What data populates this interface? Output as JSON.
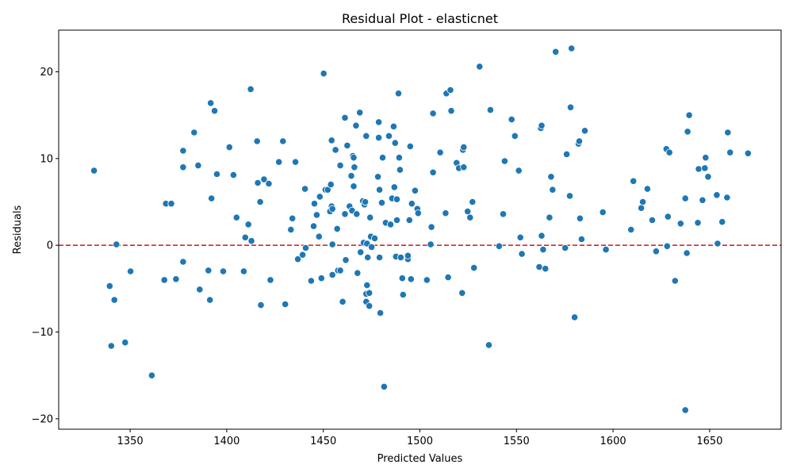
{
  "chart_data": {
    "type": "scatter",
    "title": "Residual Plot - elasticnet",
    "xlabel": "Predicted Values",
    "ylabel": "Residuals",
    "xlim": [
      1313,
      1687
    ],
    "ylim": [
      -21.2,
      24.8
    ],
    "xticks": [
      1350,
      1400,
      1450,
      1500,
      1550,
      1600,
      1650
    ],
    "xtick_labels": [
      "1350",
      "1400",
      "1450",
      "1500",
      "1550",
      "1600",
      "1650"
    ],
    "yticks": [
      -20,
      -10,
      0,
      10,
      20
    ],
    "ytick_labels": [
      "−20",
      "−10",
      "0",
      "10",
      "20"
    ],
    "grid": false,
    "reference_line": {
      "y": 0,
      "style": "dashed",
      "color": "#d62728"
    },
    "marker_color": "#1f77b4",
    "points": [
      [
        1331.3,
        8.6
      ],
      [
        1339.4,
        -4.7
      ],
      [
        1340.2,
        -11.6
      ],
      [
        1341.8,
        -6.3
      ],
      [
        1342.9,
        0.1
      ],
      [
        1347.4,
        -11.2
      ],
      [
        1350.2,
        -3.0
      ],
      [
        1361.2,
        -15.0
      ],
      [
        1367.7,
        -4.0
      ],
      [
        1368.5,
        4.8
      ],
      [
        1371.3,
        4.8
      ],
      [
        1373.7,
        -3.9
      ],
      [
        1377.4,
        9.0
      ],
      [
        1377.4,
        10.9
      ],
      [
        1377.4,
        -1.9
      ],
      [
        1383.1,
        13.0
      ],
      [
        1385.2,
        9.2
      ],
      [
        1386.0,
        -5.1
      ],
      [
        1390.5,
        -2.9
      ],
      [
        1391.3,
        -6.3
      ],
      [
        1391.7,
        16.4
      ],
      [
        1392.1,
        5.4
      ],
      [
        1393.7,
        15.5
      ],
      [
        1394.9,
        8.2
      ],
      [
        1398.2,
        -3.0
      ],
      [
        1401.4,
        11.3
      ],
      [
        1403.5,
        8.1
      ],
      [
        1405.1,
        3.2
      ],
      [
        1408.8,
        -3.0
      ],
      [
        1409.6,
        0.9
      ],
      [
        1411.2,
        2.4
      ],
      [
        1412.4,
        18.0
      ],
      [
        1412.8,
        0.5
      ],
      [
        1415.7,
        12.0
      ],
      [
        1416.1,
        7.2
      ],
      [
        1417.3,
        5.0
      ],
      [
        1417.7,
        -6.9
      ],
      [
        1419.3,
        7.6
      ],
      [
        1421.8,
        7.1
      ],
      [
        1422.6,
        -4.0
      ],
      [
        1427.0,
        9.6
      ],
      [
        1429.1,
        12.0
      ],
      [
        1430.3,
        -6.8
      ],
      [
        1433.2,
        1.8
      ],
      [
        1434.0,
        3.1
      ],
      [
        1435.6,
        9.6
      ],
      [
        1436.8,
        -1.6
      ],
      [
        1439.3,
        -1.1
      ],
      [
        1440.5,
        6.5
      ],
      [
        1440.9,
        -0.3
      ],
      [
        1443.7,
        -4.1
      ],
      [
        1445.0,
        2.2
      ],
      [
        1445.4,
        4.8
      ],
      [
        1446.6,
        3.5
      ],
      [
        1447.8,
        1.0
      ],
      [
        1448.2,
        5.6
      ],
      [
        1449.0,
        -3.8
      ],
      [
        1450.2,
        19.8
      ],
      [
        1451.1,
        6.4
      ],
      [
        1452.3,
        6.4
      ],
      [
        1453.5,
        3.9
      ],
      [
        1454.3,
        12.1
      ],
      [
        1453.9,
        7.0
      ],
      [
        1454.3,
        4.5
      ],
      [
        1454.7,
        4.2
      ],
      [
        1454.7,
        0.1
      ],
      [
        1454.7,
        -3.4
      ],
      [
        1456.3,
        11.0
      ],
      [
        1457.2,
        1.9
      ],
      [
        1457.6,
        -2.9
      ],
      [
        1458.8,
        -2.9
      ],
      [
        1458.8,
        9.2
      ],
      [
        1460.0,
        -6.5
      ],
      [
        1461.2,
        14.7
      ],
      [
        1461.2,
        3.6
      ],
      [
        1461.6,
        -1.7
      ],
      [
        1462.4,
        11.5
      ],
      [
        1463.6,
        4.5
      ],
      [
        1464.5,
        8.0
      ],
      [
        1464.9,
        4.0
      ],
      [
        1465.3,
        10.3
      ],
      [
        1465.7,
        6.8
      ],
      [
        1465.7,
        10.1
      ],
      [
        1466.1,
        9.0
      ],
      [
        1466.9,
        13.8
      ],
      [
        1467.3,
        3.6
      ],
      [
        1467.7,
        -3.2
      ],
      [
        1468.9,
        15.3
      ],
      [
        1469.3,
        -0.8
      ],
      [
        1470.5,
        5.1
      ],
      [
        1470.9,
        0.3
      ],
      [
        1471.3,
        4.7
      ],
      [
        1471.7,
        5.0
      ],
      [
        1472.2,
        12.6
      ],
      [
        1472.2,
        -5.6
      ],
      [
        1472.2,
        -6.5
      ],
      [
        1472.6,
        0.2
      ],
      [
        1472.6,
        -4.6
      ],
      [
        1473.0,
        -1.4
      ],
      [
        1473.8,
        -5.5
      ],
      [
        1473.8,
        -7.0
      ],
      [
        1474.2,
        3.2
      ],
      [
        1474.6,
        1.0
      ],
      [
        1475.0,
        -0.2
      ],
      [
        1476.6,
        0.8
      ],
      [
        1478.3,
        7.9
      ],
      [
        1478.7,
        12.4
      ],
      [
        1478.7,
        14.2
      ],
      [
        1479.1,
        -1.4
      ],
      [
        1479.1,
        6.4
      ],
      [
        1479.5,
        -7.8
      ],
      [
        1480.3,
        4.9
      ],
      [
        1480.7,
        10.1
      ],
      [
        1481.5,
        -16.3
      ],
      [
        1482.3,
        2.6
      ],
      [
        1484.0,
        12.6
      ],
      [
        1484.8,
        2.4
      ],
      [
        1485.6,
        5.4
      ],
      [
        1486.4,
        13.7
      ],
      [
        1486.8,
        6.7
      ],
      [
        1487.2,
        11.8
      ],
      [
        1487.6,
        -1.3
      ],
      [
        1488.1,
        2.9
      ],
      [
        1488.1,
        5.3
      ],
      [
        1488.9,
        17.5
      ],
      [
        1489.3,
        10.1
      ],
      [
        1489.7,
        8.7
      ],
      [
        1490.1,
        -1.4
      ],
      [
        1490.9,
        -3.8
      ],
      [
        1491.3,
        -5.7
      ],
      [
        1493.8,
        -1.6
      ],
      [
        1493.8,
        -1.2
      ],
      [
        1494.6,
        2.9
      ],
      [
        1495.0,
        11.4
      ],
      [
        1495.4,
        -3.9
      ],
      [
        1495.8,
        4.8
      ],
      [
        1497.5,
        6.3
      ],
      [
        1498.7,
        4.2
      ],
      [
        1499.1,
        3.7
      ],
      [
        1503.6,
        -4.0
      ],
      [
        1505.6,
        0.1
      ],
      [
        1506.0,
        2.1
      ],
      [
        1506.8,
        15.2
      ],
      [
        1506.8,
        8.4
      ],
      [
        1510.5,
        10.7
      ],
      [
        1513.3,
        3.7
      ],
      [
        1513.7,
        17.5
      ],
      [
        1514.6,
        -3.7
      ],
      [
        1515.8,
        17.9
      ],
      [
        1516.2,
        15.5
      ],
      [
        1519.0,
        9.5
      ],
      [
        1520.2,
        8.9
      ],
      [
        1521.9,
        -5.5
      ],
      [
        1522.3,
        11.0
      ],
      [
        1522.7,
        9.0
      ],
      [
        1522.7,
        11.3
      ],
      [
        1524.7,
        3.9
      ],
      [
        1526.0,
        3.2
      ],
      [
        1527.2,
        5.0
      ],
      [
        1528.0,
        -2.6
      ],
      [
        1530.9,
        20.6
      ],
      [
        1535.7,
        -11.5
      ],
      [
        1536.5,
        15.6
      ],
      [
        1541.0,
        -0.1
      ],
      [
        1543.1,
        3.6
      ],
      [
        1543.9,
        9.7
      ],
      [
        1547.5,
        14.5
      ],
      [
        1549.2,
        12.6
      ],
      [
        1551.2,
        8.6
      ],
      [
        1552.0,
        0.9
      ],
      [
        1552.8,
        -1.0
      ],
      [
        1561.8,
        -2.5
      ],
      [
        1562.6,
        13.5
      ],
      [
        1563.0,
        1.1
      ],
      [
        1563.0,
        13.8
      ],
      [
        1563.8,
        -0.5
      ],
      [
        1565.0,
        -2.7
      ],
      [
        1567.1,
        3.2
      ],
      [
        1567.9,
        7.9
      ],
      [
        1568.7,
        6.4
      ],
      [
        1570.3,
        22.3
      ],
      [
        1575.2,
        -0.3
      ],
      [
        1576.0,
        10.5
      ],
      [
        1577.6,
        5.7
      ],
      [
        1578.0,
        15.9
      ],
      [
        1578.5,
        22.7
      ],
      [
        1580.1,
        -8.3
      ],
      [
        1582.1,
        11.7
      ],
      [
        1582.5,
        12.0
      ],
      [
        1582.9,
        3.1
      ],
      [
        1583.7,
        0.7
      ],
      [
        1585.4,
        13.2
      ],
      [
        1594.7,
        3.8
      ],
      [
        1596.3,
        -0.5
      ],
      [
        1609.3,
        1.8
      ],
      [
        1610.5,
        7.4
      ],
      [
        1614.6,
        4.3
      ],
      [
        1615.4,
        5.0
      ],
      [
        1617.8,
        6.5
      ],
      [
        1620.3,
        2.9
      ],
      [
        1622.3,
        -0.7
      ],
      [
        1627.6,
        11.1
      ],
      [
        1628.0,
        -0.1
      ],
      [
        1628.4,
        3.3
      ],
      [
        1629.2,
        10.7
      ],
      [
        1632.1,
        -4.1
      ],
      [
        1635.0,
        2.5
      ],
      [
        1637.4,
        5.4
      ],
      [
        1637.4,
        -19.0
      ],
      [
        1638.2,
        -0.9
      ],
      [
        1638.6,
        13.1
      ],
      [
        1639.4,
        15.0
      ],
      [
        1643.9,
        2.6
      ],
      [
        1644.3,
        8.8
      ],
      [
        1646.3,
        5.2
      ],
      [
        1647.5,
        8.9
      ],
      [
        1647.9,
        10.1
      ],
      [
        1649.2,
        7.9
      ],
      [
        1653.7,
        5.8
      ],
      [
        1654.1,
        0.2
      ],
      [
        1656.5,
        2.7
      ],
      [
        1659.0,
        5.5
      ],
      [
        1659.4,
        13.0
      ],
      [
        1660.6,
        10.7
      ],
      [
        1669.9,
        10.6
      ]
    ]
  }
}
